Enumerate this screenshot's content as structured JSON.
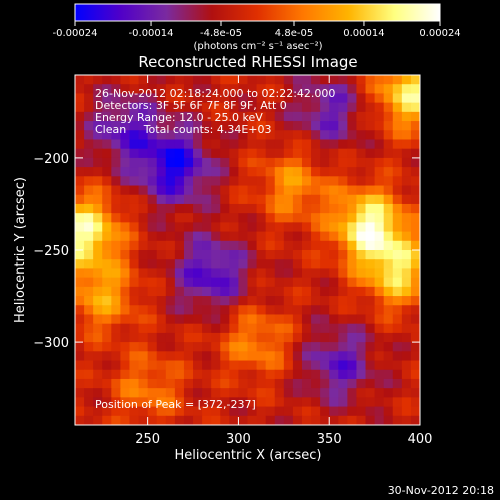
{
  "chart_data": {
    "type": "heatmap",
    "title": "Reconstructed RHESSI Image",
    "xlabel": "Heliocentric X (arcsec)",
    "ylabel": "Heliocentric Y (arcsec)",
    "xlim": [
      210,
      400
    ],
    "ylim": [
      -345,
      -155
    ],
    "x_ticks": [
      "250",
      "300",
      "350",
      "400"
    ],
    "x_tick_values": [
      250,
      300,
      350,
      400
    ],
    "y_ticks": [
      "-200",
      "-250",
      "-300"
    ],
    "y_tick_values": [
      -200,
      -250,
      -300
    ],
    "colorbar": {
      "range": [
        -0.00024,
        0.00024
      ],
      "ticks": [
        "-0.00024",
        "-0.00014",
        "-4.8e-05",
        "4.8e-05",
        "0.00014",
        "0.00024"
      ],
      "tick_values": [
        -0.00024,
        -0.00014,
        -4.8e-05,
        4.8e-05,
        0.00014,
        0.00024
      ],
      "label": "(photons cm⁻² s⁻¹ asec⁻²)",
      "colors": [
        "#0000ff",
        "#5000c8",
        "#7a2aa0",
        "#b01010",
        "#e03000",
        "#ff7800",
        "#ffb400",
        "#ffff80",
        "#ffffff"
      ]
    },
    "annotations": [
      "26-Nov-2012 02:18:24.000 to 02:22:42.000",
      "Detectors: 3F 5F 6F 7F 8F 9F, Att 0",
      "Energy Range: 12.0 - 25.0 keV",
      "Clean     Total counts: 4.34E+03"
    ],
    "peak_label": "Position of Peak = [372,-237]",
    "peak": [
      372,
      -237
    ],
    "hotspots": [
      {
        "x": 372,
        "y": -237,
        "level": 1.0
      },
      {
        "x": 215,
        "y": -240,
        "level": 0.95
      },
      {
        "x": 395,
        "y": -165,
        "level": 0.85
      },
      {
        "x": 388,
        "y": -262,
        "level": 0.75
      },
      {
        "x": 225,
        "y": -275,
        "level": 0.55
      },
      {
        "x": 330,
        "y": -215,
        "level": 0.5
      },
      {
        "x": 310,
        "y": -300,
        "level": 0.45
      },
      {
        "x": 250,
        "y": -325,
        "level": 0.4
      }
    ],
    "coldspots": [
      {
        "x": 265,
        "y": -205,
        "level": -0.75
      },
      {
        "x": 285,
        "y": -263,
        "level": -0.6
      },
      {
        "x": 238,
        "y": -185,
        "level": -0.5
      },
      {
        "x": 350,
        "y": -175,
        "level": -0.45
      },
      {
        "x": 355,
        "y": -312,
        "level": -0.5
      }
    ]
  },
  "footer": {
    "date": "30-Nov-2012 20:18"
  }
}
